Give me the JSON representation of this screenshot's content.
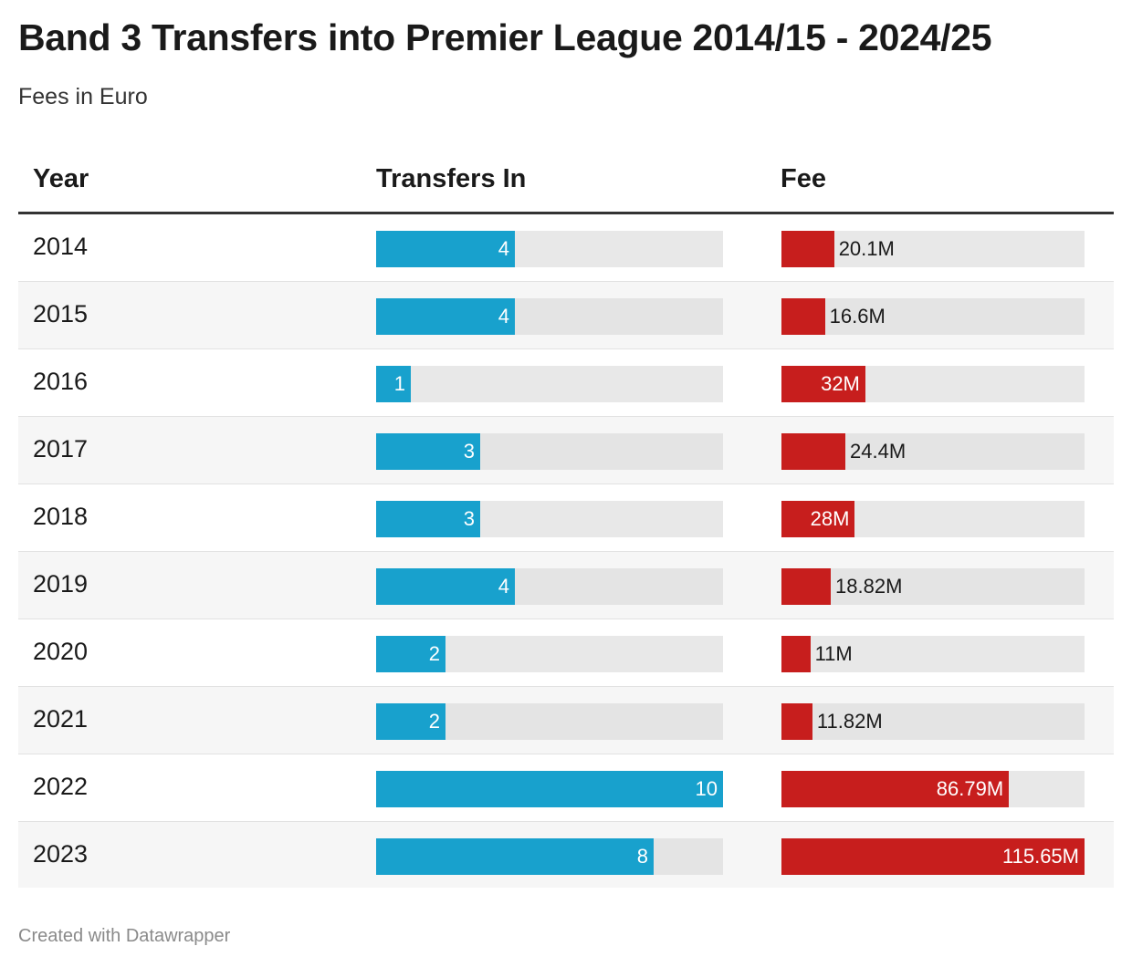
{
  "title": "Band 3 Transfers into Premier League 2014/15 - 2024/25",
  "subtitle": "Fees in Euro",
  "footer": "Created with Datawrapper",
  "colors": {
    "transfers": "#18a1cd",
    "fee": "#c71e1d",
    "track": "#e8e8e8"
  },
  "chart_data": {
    "type": "table",
    "columns": [
      "Year",
      "Transfers In",
      "Fee"
    ],
    "transfers_max": 10,
    "fee_max": 115.65,
    "rows": [
      {
        "year": "2014",
        "transfers": 4,
        "fee": 20.1,
        "fee_label": "20.1M"
      },
      {
        "year": "2015",
        "transfers": 4,
        "fee": 16.6,
        "fee_label": "16.6M"
      },
      {
        "year": "2016",
        "transfers": 1,
        "fee": 32,
        "fee_label": "32M"
      },
      {
        "year": "2017",
        "transfers": 3,
        "fee": 24.4,
        "fee_label": "24.4M"
      },
      {
        "year": "2018",
        "transfers": 3,
        "fee": 28,
        "fee_label": "28M"
      },
      {
        "year": "2019",
        "transfers": 4,
        "fee": 18.82,
        "fee_label": "18.82M"
      },
      {
        "year": "2020",
        "transfers": 2,
        "fee": 11,
        "fee_label": "11M"
      },
      {
        "year": "2021",
        "transfers": 2,
        "fee": 11.82,
        "fee_label": "11.82M"
      },
      {
        "year": "2022",
        "transfers": 10,
        "fee": 86.79,
        "fee_label": "86.79M"
      },
      {
        "year": "2023",
        "transfers": 8,
        "fee": 115.65,
        "fee_label": "115.65M"
      }
    ]
  }
}
